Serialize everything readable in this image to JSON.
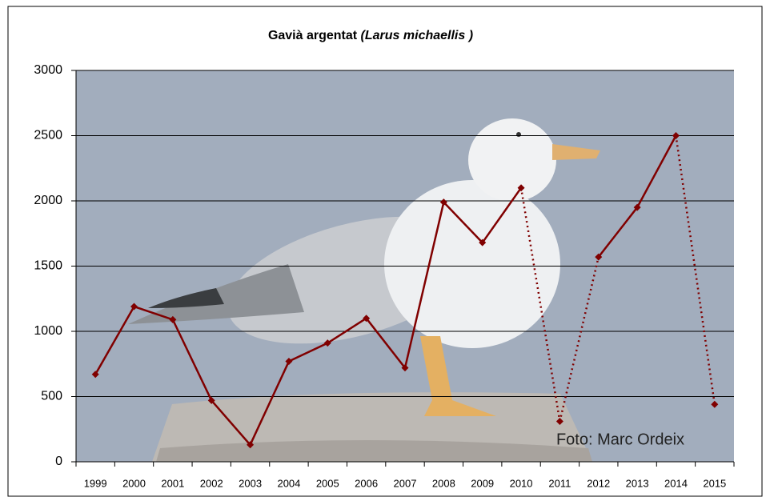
{
  "chart_data": {
    "type": "line",
    "title": "Gavià argentat",
    "title_species": "(Larus michaellis )",
    "annotation": "Foto: Marc Ordeix",
    "categories": [
      "1999",
      "2000",
      "2001",
      "2002",
      "2003",
      "2004",
      "2005",
      "2006",
      "2007",
      "2008",
      "2009",
      "2010",
      "2011",
      "2012",
      "2013",
      "2014",
      "2015"
    ],
    "values": [
      670,
      1190,
      1090,
      470,
      130,
      770,
      910,
      1100,
      720,
      1990,
      1680,
      2100,
      310,
      1570,
      1950,
      2500,
      440
    ],
    "color": "#800000",
    "dotted_segments": [
      [
        "2010",
        "2011"
      ],
      [
        "2011",
        "2012"
      ],
      [
        "2014",
        "2015"
      ]
    ],
    "ylim": [
      0,
      3000
    ],
    "yticks": [
      0,
      500,
      1000,
      1500,
      2000,
      2500,
      3000
    ],
    "grid": true
  }
}
